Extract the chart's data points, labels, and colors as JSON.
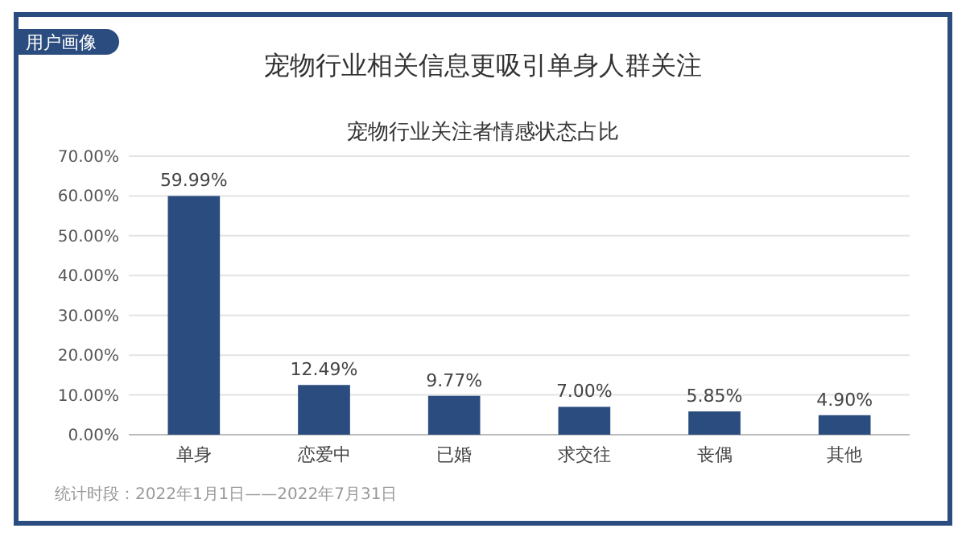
{
  "chart_data": {
    "type": "bar",
    "title": "宠物行业相关信息更吸引单身人群关注",
    "subtitle": "宠物行业关注者情感状态占比",
    "annotations": [
      "用户画像",
      "统计时段：2022年1月1日——2022年7月31日"
    ],
    "categories": [
      "单身",
      "恋爱中",
      "已婚",
      "求交往",
      "丧偶",
      "其他"
    ],
    "values": [
      59.99,
      12.49,
      9.77,
      7.0,
      5.85,
      4.9
    ],
    "value_labels": [
      "59.99%",
      "12.49%",
      "9.77%",
      "7.00%",
      "5.85%",
      "4.90%"
    ],
    "color": "#2b4c7e",
    "ylim": [
      0,
      70
    ],
    "yticks": [
      {
        "value": 0,
        "label": "0.00%"
      },
      {
        "value": 10,
        "label": "10.00%"
      },
      {
        "value": 20,
        "label": "20.00%"
      },
      {
        "value": 30,
        "label": "30.00%"
      },
      {
        "value": 40,
        "label": "40.00%"
      },
      {
        "value": 50,
        "label": "50.00%"
      },
      {
        "value": 60,
        "label": "60.00%"
      },
      {
        "value": 70,
        "label": "70.00%"
      }
    ],
    "grid": "y"
  }
}
